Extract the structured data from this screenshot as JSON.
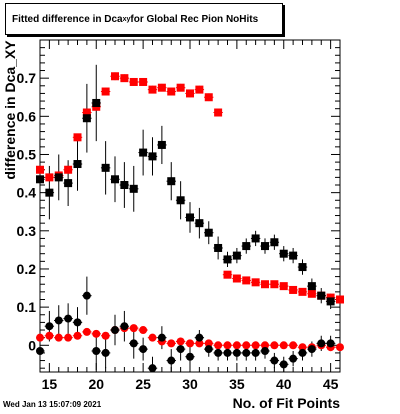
{
  "title": {
    "prefix": "Fitted difference in Dca",
    "subscript": "xy",
    "suffix": " for Global Rec Pion NoHits"
  },
  "footer": {
    "timestamp": "Wed Jan 13 15:07:09 2021"
  },
  "chart_data": {
    "type": "scatter",
    "title": "Fitted difference in Dca_xy for Global Rec Pion NoHits",
    "xlabel": "No. of Fit Points",
    "ylabel": "difference in Dca_XY",
    "xlim": [
      14,
      46
    ],
    "ylim": [
      -0.07,
      0.8
    ],
    "xticks": [
      15,
      20,
      25,
      30,
      35,
      40,
      45
    ],
    "yticks": [
      0,
      0.1,
      0.2,
      0.3,
      0.4,
      0.5,
      0.6,
      0.7
    ],
    "ytick_labels": [
      "0",
      "0.1",
      "0.2",
      "0.3",
      "0.4",
      "0.5",
      "0.6",
      "0.7"
    ],
    "series": [
      {
        "color": "#ff0000",
        "marker": "square",
        "x": [
          14,
          15,
          16,
          17,
          18,
          19,
          20,
          21,
          22,
          23,
          24,
          25,
          26,
          27,
          28,
          29,
          30,
          31,
          32,
          33
        ],
        "y": [
          0.46,
          0.44,
          0.445,
          0.46,
          0.545,
          0.61,
          0.625,
          0.665,
          0.705,
          0.7,
          0.69,
          0.69,
          0.67,
          0.675,
          0.665,
          0.675,
          0.66,
          0.67,
          0.65,
          0.61
        ],
        "yerr": [
          0.01,
          0.01,
          0.01,
          0.01,
          0.01,
          0.01,
          0.01,
          0.01,
          0.01,
          0.01,
          0.01,
          0.01,
          0.01,
          0.01,
          0.01,
          0.01,
          0.01,
          0.01,
          0.01,
          0.01
        ]
      },
      {
        "color": "#ff0000",
        "marker": "square",
        "x": [
          34,
          35,
          36,
          37,
          38,
          39,
          40,
          41,
          42,
          43,
          44,
          45,
          46
        ],
        "y": [
          0.185,
          0.175,
          0.17,
          0.165,
          0.16,
          0.16,
          0.155,
          0.145,
          0.14,
          0.135,
          0.13,
          0.125,
          0.12
        ],
        "yerr": [
          0.005,
          0.005,
          0.005,
          0.005,
          0.005,
          0.005,
          0.005,
          0.005,
          0.005,
          0.005,
          0.005,
          0.005,
          0.005
        ]
      },
      {
        "color": "#000000",
        "marker": "square",
        "x": [
          14,
          15,
          16,
          17,
          18,
          19,
          20,
          21,
          22,
          23,
          24,
          25,
          26,
          27,
          28,
          29,
          30,
          31,
          32,
          33,
          34,
          35,
          36,
          37,
          38,
          39,
          40,
          41,
          42,
          43,
          44,
          45
        ],
        "y": [
          0.435,
          0.4,
          0.44,
          0.425,
          0.475,
          0.595,
          0.635,
          0.465,
          0.435,
          0.42,
          0.41,
          0.505,
          0.495,
          0.525,
          0.43,
          0.38,
          0.335,
          0.32,
          0.295,
          0.255,
          0.225,
          0.235,
          0.26,
          0.28,
          0.26,
          0.27,
          0.24,
          0.235,
          0.205,
          0.155,
          0.13,
          0.115
        ],
        "yerr": [
          0.06,
          0.07,
          0.06,
          0.06,
          0.07,
          0.09,
          0.1,
          0.07,
          0.06,
          0.06,
          0.06,
          0.06,
          0.05,
          0.05,
          0.05,
          0.05,
          0.04,
          0.04,
          0.03,
          0.03,
          0.02,
          0.02,
          0.02,
          0.02,
          0.02,
          0.02,
          0.02,
          0.02,
          0.02,
          0.02,
          0.02,
          0.02
        ]
      },
      {
        "color": "#ff0000",
        "marker": "circle",
        "x": [
          14,
          15,
          16,
          17,
          18,
          19,
          20,
          21,
          22,
          23,
          24,
          25,
          26,
          27,
          28,
          29,
          30,
          31,
          32,
          33,
          34,
          35,
          36,
          37,
          38,
          39,
          40,
          41,
          42,
          43,
          44,
          45,
          46
        ],
        "y": [
          0.02,
          0.025,
          0.02,
          0.02,
          0.025,
          0.035,
          0.03,
          0.025,
          0.04,
          0.045,
          0.045,
          0.04,
          0.02,
          0.01,
          0.005,
          0.01,
          0.005,
          0.005,
          0.005,
          0.0,
          0.0,
          0.0,
          0.0,
          0.0,
          0.0,
          0.0,
          0.0,
          0.0,
          -0.005,
          -0.005,
          0.0,
          -0.005,
          -0.005
        ],
        "yerr": [
          0.005,
          0.005,
          0.005,
          0.005,
          0.005,
          0.005,
          0.005,
          0.005,
          0.005,
          0.005,
          0.005,
          0.005,
          0.005,
          0.005,
          0.005,
          0.005,
          0.005,
          0.005,
          0.005,
          0.005,
          0.005,
          0.005,
          0.005,
          0.005,
          0.005,
          0.005,
          0.005,
          0.005,
          0.005,
          0.005,
          0.005,
          0.005,
          0.005
        ]
      },
      {
        "color": "#000000",
        "marker": "circle",
        "x": [
          14,
          15,
          16,
          17,
          18,
          19,
          20,
          21,
          22,
          23,
          24,
          25,
          26,
          27,
          28,
          29,
          30,
          31,
          32,
          33,
          34,
          35,
          36,
          37,
          38,
          39,
          40,
          41,
          42,
          43,
          44,
          45
        ],
        "y": [
          -0.015,
          0.05,
          0.065,
          0.07,
          0.06,
          0.13,
          -0.015,
          -0.02,
          0.04,
          0.05,
          0.005,
          -0.01,
          -0.06,
          0.02,
          -0.04,
          -0.01,
          -0.03,
          0.02,
          -0.01,
          -0.02,
          -0.02,
          -0.02,
          -0.02,
          -0.02,
          -0.015,
          -0.04,
          -0.05,
          -0.035,
          -0.02,
          -0.01,
          0.005,
          0.005
        ],
        "yerr": [
          0.03,
          0.04,
          0.04,
          0.04,
          0.04,
          0.05,
          0.05,
          0.04,
          0.04,
          0.04,
          0.04,
          0.03,
          0.03,
          0.03,
          0.03,
          0.03,
          0.03,
          0.02,
          0.02,
          0.02,
          0.02,
          0.02,
          0.02,
          0.02,
          0.02,
          0.02,
          0.02,
          0.02,
          0.02,
          0.02,
          0.02,
          0.02
        ]
      }
    ]
  }
}
